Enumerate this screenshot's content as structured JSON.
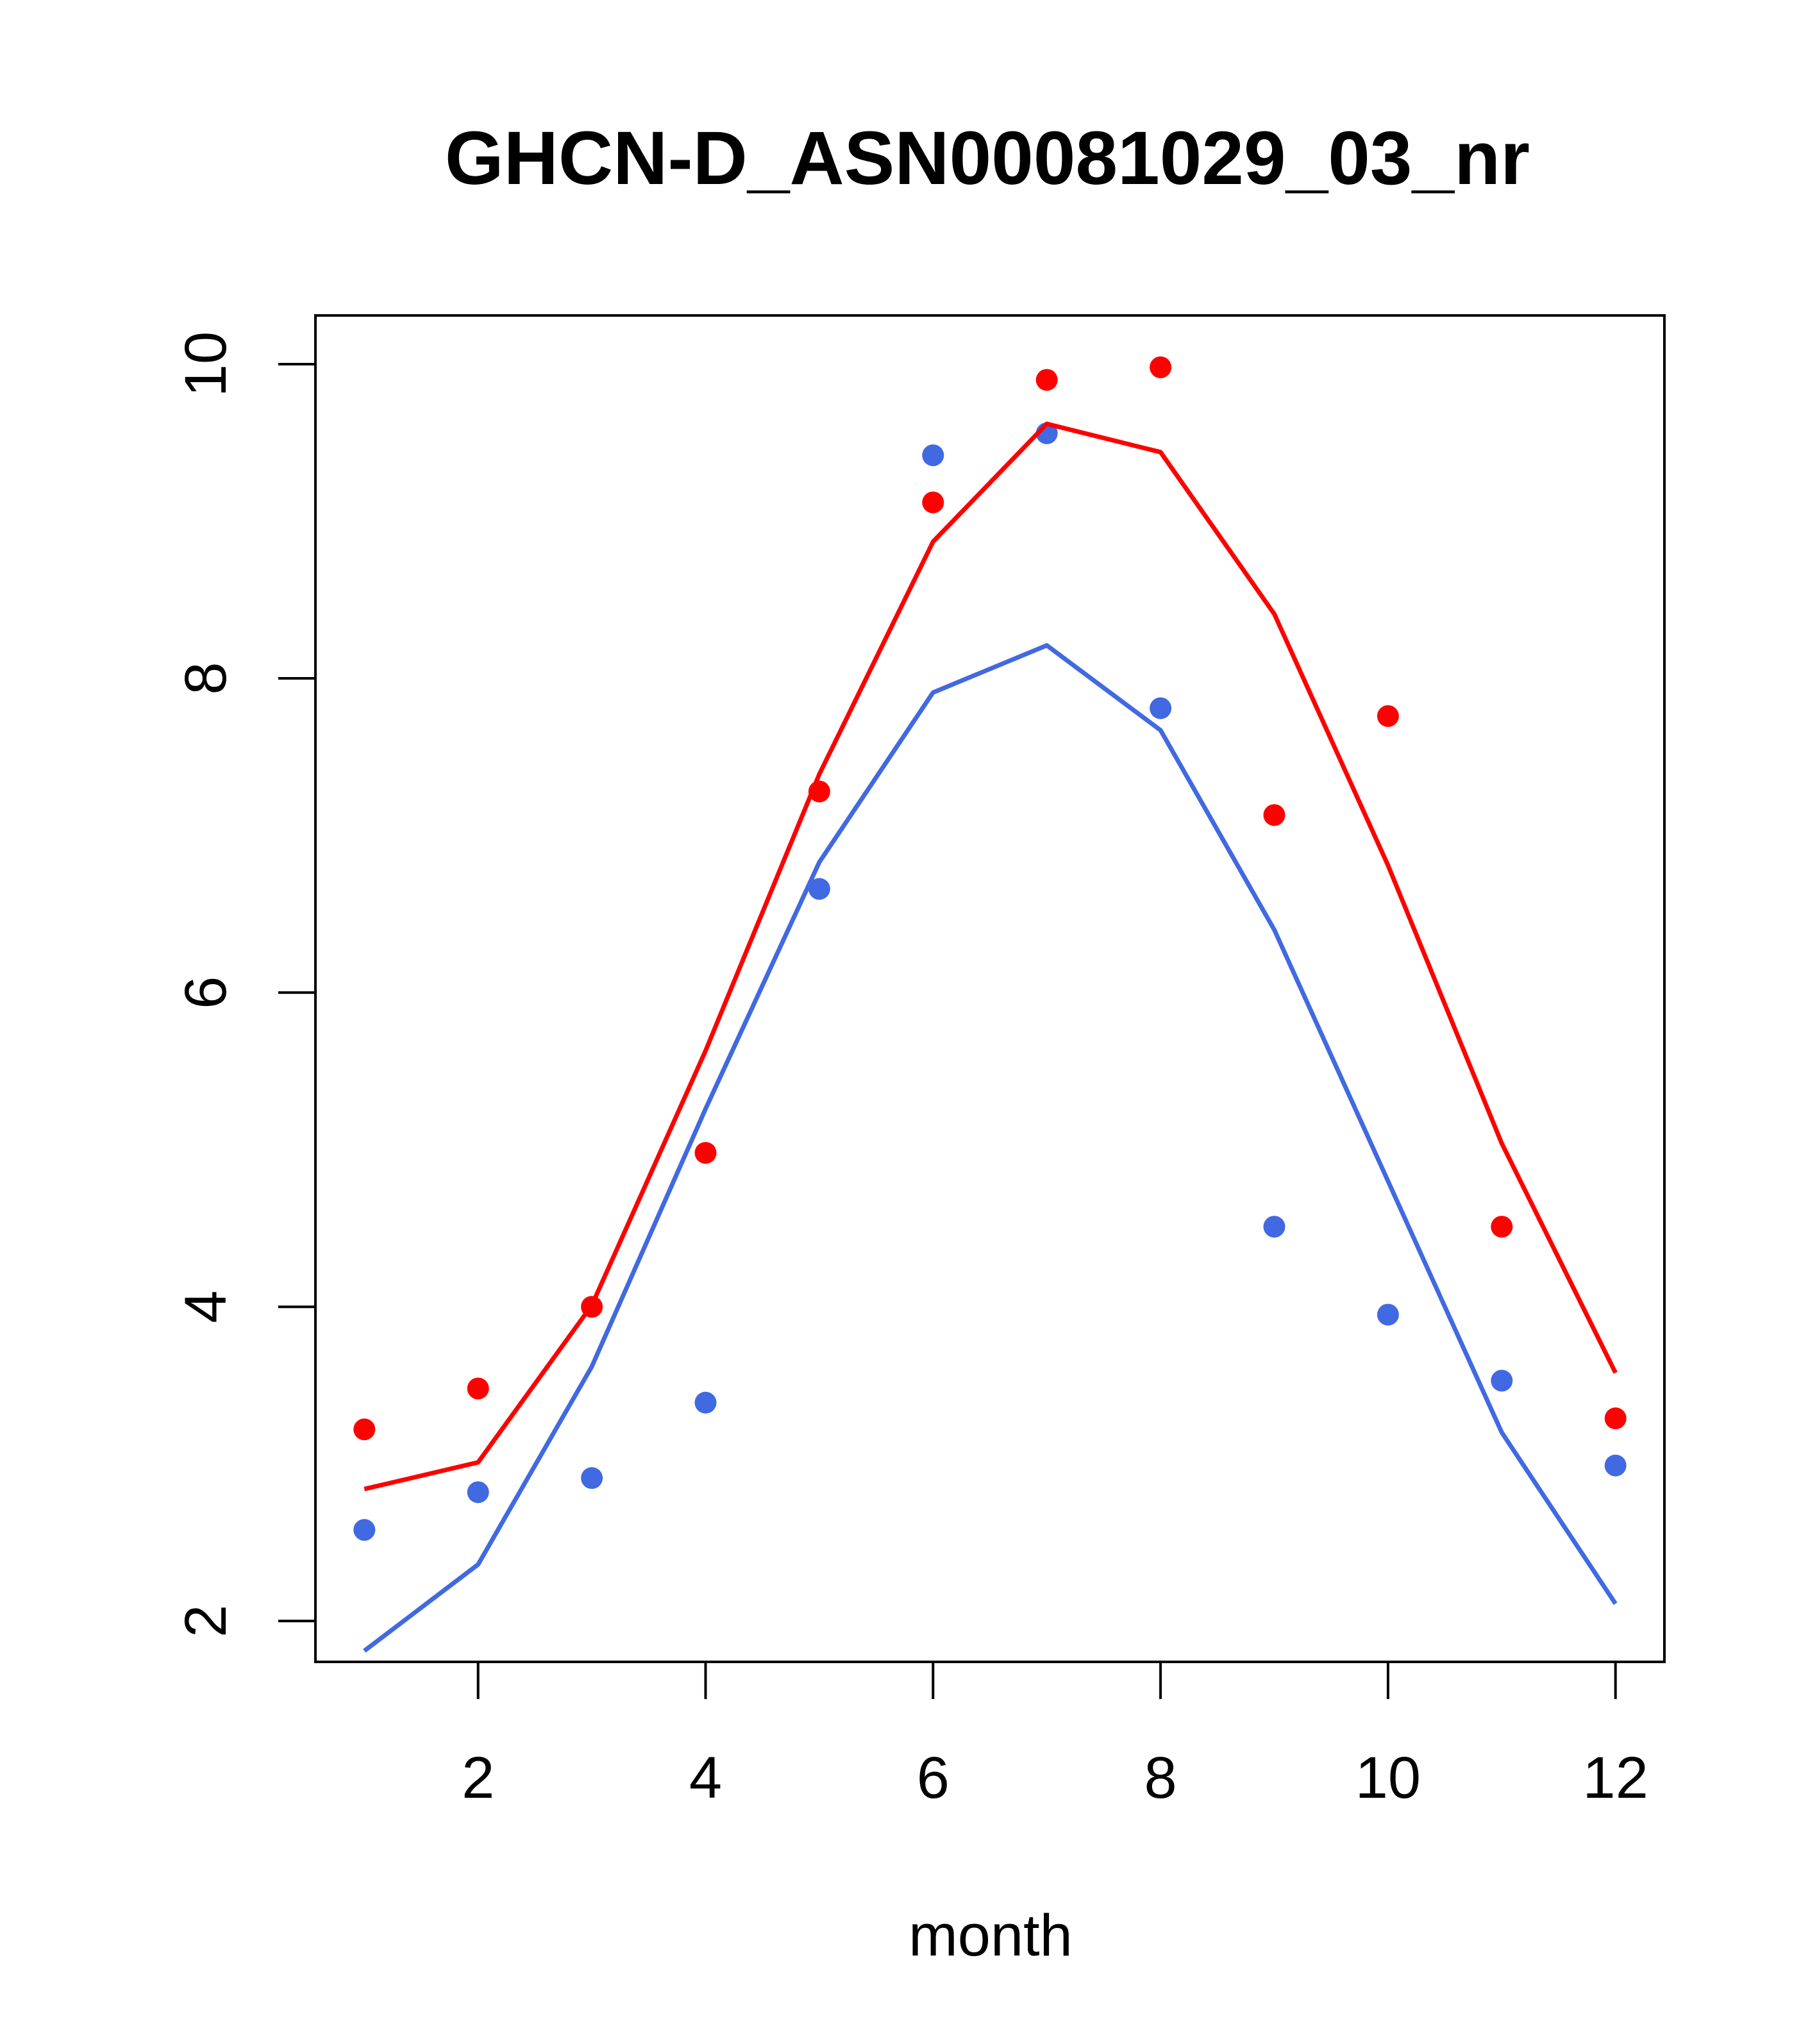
{
  "chart_data": {
    "type": "line",
    "title": "GHCN-D_ASN00081029_03_nr",
    "xlabel": "month",
    "ylabel": "",
    "xlim": [
      0.57,
      12.43
    ],
    "ylim": [
      1.74,
      10.31
    ],
    "x_ticks": [
      "2",
      "4",
      "6",
      "8",
      "10",
      "12"
    ],
    "y_ticks": [
      "2",
      "4",
      "6",
      "8",
      "10"
    ],
    "grid": false,
    "legend": "none",
    "series": [
      {
        "color": "#ff0000",
        "kind": "points",
        "x": [
          1,
          2,
          3,
          4,
          5,
          6,
          7,
          8,
          9,
          10,
          11,
          12
        ],
        "values": [
          3.22,
          3.48,
          4.0,
          4.98,
          7.28,
          9.12,
          9.9,
          9.98,
          7.13,
          7.76,
          4.51,
          3.29
        ]
      },
      {
        "color": "#4169e1",
        "kind": "points",
        "x": [
          1,
          2,
          3,
          4,
          5,
          6,
          7,
          8,
          9,
          10,
          11,
          12
        ],
        "values": [
          2.58,
          2.82,
          2.91,
          3.39,
          6.66,
          9.42,
          9.56,
          7.81,
          4.51,
          3.95,
          3.53,
          2.99
        ]
      },
      {
        "color": "#ff0000",
        "kind": "line",
        "x": [
          1,
          2,
          3,
          4,
          5,
          6,
          7,
          8,
          9,
          10,
          11,
          12
        ],
        "values": [
          2.84,
          3.01,
          4.01,
          5.63,
          7.39,
          8.87,
          9.62,
          9.44,
          8.41,
          6.81,
          5.04,
          3.58
        ]
      },
      {
        "color": "#4169e1",
        "kind": "line",
        "x": [
          1,
          2,
          3,
          4,
          5,
          6,
          7,
          8,
          9,
          10,
          11,
          12
        ],
        "values": [
          1.81,
          2.36,
          3.62,
          5.26,
          6.83,
          7.91,
          8.21,
          7.67,
          6.4,
          4.8,
          3.2,
          2.11
        ]
      }
    ]
  }
}
